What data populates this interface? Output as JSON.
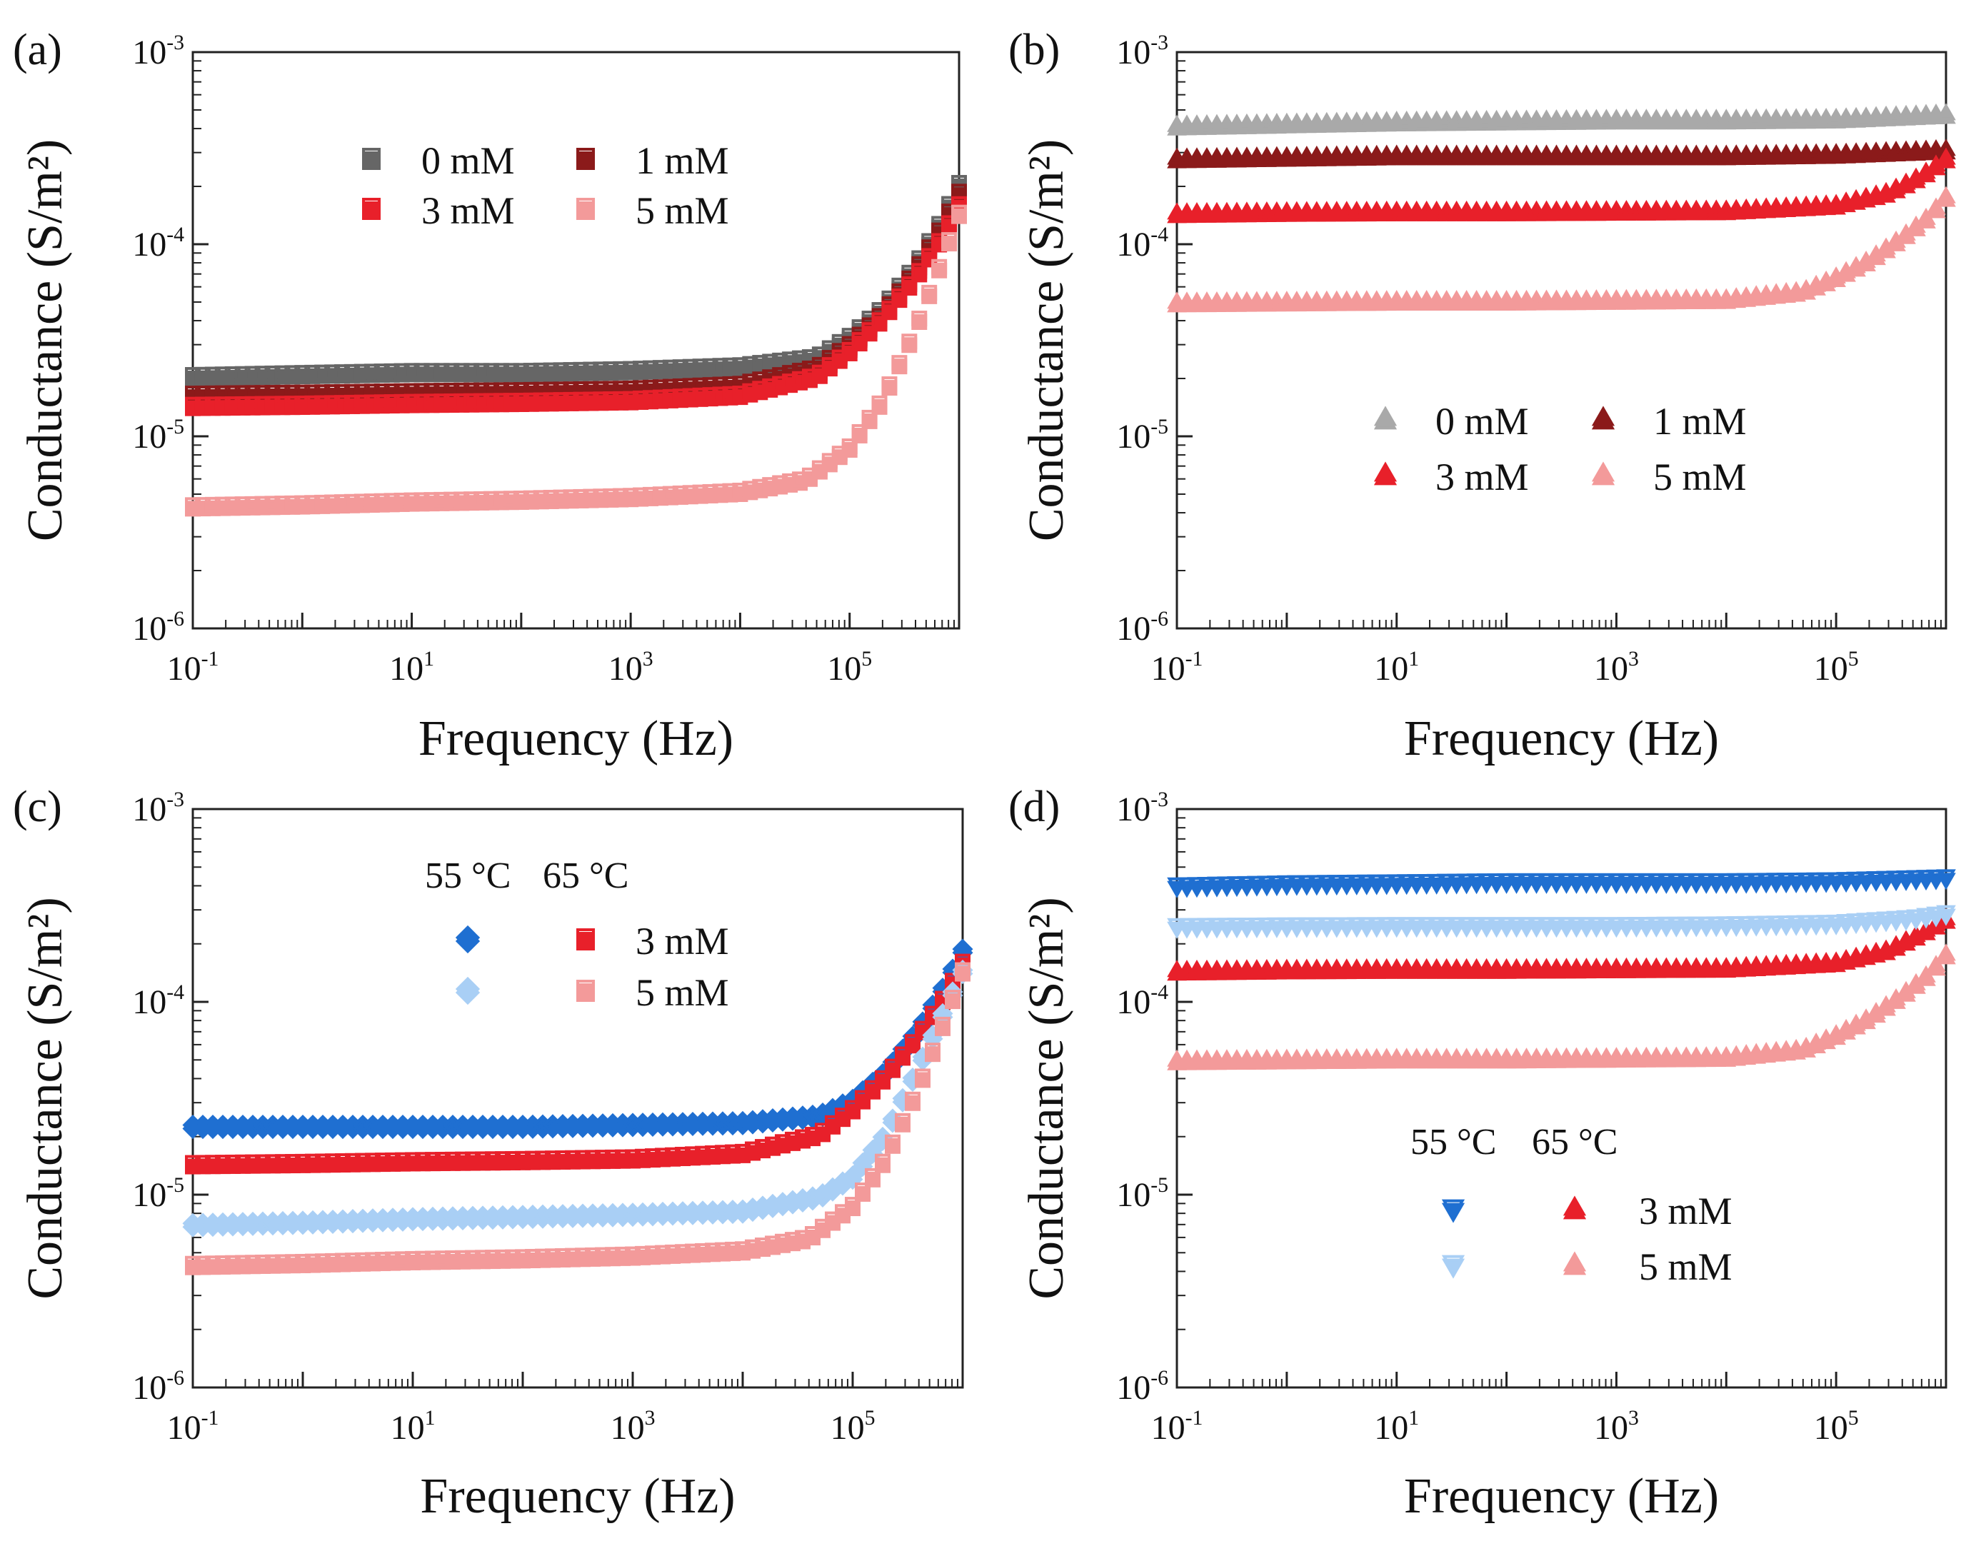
{
  "figure": {
    "panels": [
      "a",
      "b",
      "c",
      "d"
    ]
  },
  "chart_data": [
    {
      "id": "a",
      "panel_label": "(a)",
      "type": "scatter",
      "title": "",
      "xlabel": "Frequency (Hz)",
      "ylabel": "Conductance (S/m²)",
      "xscale": "log",
      "yscale": "log",
      "xlim": [
        0.1,
        1000000
      ],
      "ylim": [
        1e-06,
        0.001
      ],
      "xticks": [
        {
          "base": "10",
          "exp": "-1",
          "v": 0.1
        },
        {
          "base": "10",
          "exp": "1",
          "v": 10
        },
        {
          "base": "10",
          "exp": "3",
          "v": 1000
        },
        {
          "base": "10",
          "exp": "5",
          "v": 100000
        }
      ],
      "yticks": [
        {
          "base": "10",
          "exp": "-6",
          "v": 1e-06
        },
        {
          "base": "10",
          "exp": "-5",
          "v": 1e-05
        },
        {
          "base": "10",
          "exp": "-4",
          "v": 0.0001
        },
        {
          "base": "10",
          "exp": "-3",
          "v": 0.001
        }
      ],
      "legend": {
        "placement": "top-center",
        "columns": 2,
        "header": []
      },
      "series": [
        {
          "name": "0 mM",
          "color": "#666666",
          "marker": "square",
          "points": [
            [
              0.1,
              2e-05
            ],
            [
              1,
              2.05e-05
            ],
            [
              10,
              2.1e-05
            ],
            [
              100,
              2.1e-05
            ],
            [
              1000,
              2.15e-05
            ],
            [
              10000,
              2.25e-05
            ],
            [
              50000,
              2.5e-05
            ],
            [
              100000,
              3.2e-05
            ],
            [
              200000,
              4.5e-05
            ],
            [
              400000,
              7.5e-05
            ],
            [
              700000,
              0.00013
            ],
            [
              1000000,
              0.0002
            ]
          ]
        },
        {
          "name": "1 mM",
          "color": "#8b1a1a",
          "marker": "square",
          "points": [
            [
              0.1,
              1.6e-05
            ],
            [
              1,
              1.62e-05
            ],
            [
              10,
              1.65e-05
            ],
            [
              100,
              1.67e-05
            ],
            [
              1000,
              1.7e-05
            ],
            [
              10000,
              1.8e-05
            ],
            [
              50000,
              2.2e-05
            ],
            [
              100000,
              2.9e-05
            ],
            [
              200000,
              4.2e-05
            ],
            [
              400000,
              7e-05
            ],
            [
              700000,
              0.00012
            ],
            [
              1000000,
              0.00018
            ]
          ]
        },
        {
          "name": "3 mM",
          "color": "#e8202a",
          "marker": "square",
          "points": [
            [
              0.1,
              1.4e-05
            ],
            [
              1,
              1.42e-05
            ],
            [
              10,
              1.45e-05
            ],
            [
              100,
              1.47e-05
            ],
            [
              1000,
              1.5e-05
            ],
            [
              10000,
              1.6e-05
            ],
            [
              50000,
              2e-05
            ],
            [
              100000,
              2.7e-05
            ],
            [
              200000,
              4e-05
            ],
            [
              400000,
              6.5e-05
            ],
            [
              700000,
              0.000105
            ],
            [
              1000000,
              0.000155
            ]
          ]
        },
        {
          "name": "5 mM",
          "color": "#f39a9a",
          "marker": "square",
          "points": [
            [
              0.1,
              4.2e-06
            ],
            [
              1,
              4.3e-06
            ],
            [
              10,
              4.45e-06
            ],
            [
              100,
              4.55e-06
            ],
            [
              1000,
              4.7e-06
            ],
            [
              10000,
              5e-06
            ],
            [
              40000,
              5.8e-06
            ],
            [
              100000,
              8.5e-06
            ],
            [
              200000,
              1.5e-05
            ],
            [
              400000,
              3.5e-05
            ],
            [
              700000,
              8e-05
            ],
            [
              1000000,
              0.00014
            ]
          ]
        }
      ]
    },
    {
      "id": "b",
      "panel_label": "(b)",
      "type": "scatter",
      "title": "",
      "xlabel": "Frequency (Hz)",
      "ylabel": "Conductance (S/m²)",
      "xscale": "log",
      "yscale": "log",
      "xlim": [
        0.1,
        1000000
      ],
      "ylim": [
        1e-06,
        0.001
      ],
      "xticks": [
        {
          "base": "10",
          "exp": "-1",
          "v": 0.1
        },
        {
          "base": "10",
          "exp": "1",
          "v": 10
        },
        {
          "base": "10",
          "exp": "3",
          "v": 1000
        },
        {
          "base": "10",
          "exp": "5",
          "v": 100000
        }
      ],
      "yticks": [
        {
          "base": "10",
          "exp": "-6",
          "v": 1e-06
        },
        {
          "base": "10",
          "exp": "-5",
          "v": 1e-05
        },
        {
          "base": "10",
          "exp": "-4",
          "v": 0.0001
        },
        {
          "base": "10",
          "exp": "-3",
          "v": 0.001
        }
      ],
      "legend": {
        "placement": "center-right",
        "columns": 2,
        "header": []
      },
      "series": [
        {
          "name": "0 mM",
          "color": "#a9a9a9",
          "marker": "triangle-up",
          "points": [
            [
              0.1,
              0.0004
            ],
            [
              1,
              0.00041
            ],
            [
              10,
              0.00042
            ],
            [
              100,
              0.000425
            ],
            [
              1000,
              0.00043
            ],
            [
              10000,
              0.00043
            ],
            [
              100000,
              0.000435
            ],
            [
              1000000,
              0.00046
            ]
          ]
        },
        {
          "name": "1 mM",
          "color": "#8b1a1a",
          "marker": "triangle-up",
          "points": [
            [
              0.1,
              0.00027
            ],
            [
              1,
              0.000275
            ],
            [
              10,
              0.00028
            ],
            [
              100,
              0.00028
            ],
            [
              1000,
              0.00028
            ],
            [
              10000,
              0.00028
            ],
            [
              100000,
              0.000285
            ],
            [
              1000000,
              0.0003
            ]
          ]
        },
        {
          "name": "3 mM",
          "color": "#e8202a",
          "marker": "triangle-up",
          "points": [
            [
              0.1,
              0.00014
            ],
            [
              1,
              0.000142
            ],
            [
              10,
              0.000143
            ],
            [
              100,
              0.000143
            ],
            [
              1000,
              0.000144
            ],
            [
              10000,
              0.000145
            ],
            [
              100000,
              0.000155
            ],
            [
              300000,
              0.00018
            ],
            [
              600000,
              0.00022
            ],
            [
              1000000,
              0.00027
            ]
          ]
        },
        {
          "name": "5 mM",
          "color": "#f39a9a",
          "marker": "triangle-up",
          "points": [
            [
              0.1,
              4.8e-05
            ],
            [
              1,
              4.85e-05
            ],
            [
              10,
              4.9e-05
            ],
            [
              100,
              4.9e-05
            ],
            [
              1000,
              4.95e-05
            ],
            [
              10000,
              5e-05
            ],
            [
              50000,
              5.5e-05
            ],
            [
              100000,
              6.5e-05
            ],
            [
              200000,
              8e-05
            ],
            [
              400000,
              0.000105
            ],
            [
              700000,
              0.000135
            ],
            [
              1000000,
              0.00017
            ]
          ]
        }
      ]
    },
    {
      "id": "c",
      "panel_label": "(c)",
      "type": "scatter",
      "title": "",
      "xlabel": "Frequency (Hz)",
      "ylabel": "Conductance (S/m²)",
      "xscale": "log",
      "yscale": "log",
      "xlim": [
        0.1,
        1000000
      ],
      "ylim": [
        1e-06,
        0.001
      ],
      "xticks": [
        {
          "base": "10",
          "exp": "-1",
          "v": 0.1
        },
        {
          "base": "10",
          "exp": "1",
          "v": 10
        },
        {
          "base": "10",
          "exp": "3",
          "v": 1000
        },
        {
          "base": "10",
          "exp": "5",
          "v": 100000
        }
      ],
      "yticks": [
        {
          "base": "10",
          "exp": "-6",
          "v": 1e-06
        },
        {
          "base": "10",
          "exp": "-5",
          "v": 1e-05
        },
        {
          "base": "10",
          "exp": "-4",
          "v": 0.0001
        },
        {
          "base": "10",
          "exp": "-3",
          "v": 0.001
        }
      ],
      "legend": {
        "placement": "top-center",
        "columns": 2,
        "header": [
          "55 °C",
          "65 °C"
        ],
        "row_labels": [
          "3 mM",
          "5 mM"
        ]
      },
      "series": [
        {
          "name": "55 °C 3 mM",
          "color": "#1f6fd1",
          "marker": "diamond",
          "points": [
            [
              0.1,
              2.2e-05
            ],
            [
              1,
              2.2e-05
            ],
            [
              10,
              2.2e-05
            ],
            [
              100,
              2.2e-05
            ],
            [
              1000,
              2.25e-05
            ],
            [
              10000,
              2.3e-05
            ],
            [
              50000,
              2.5e-05
            ],
            [
              100000,
              3e-05
            ],
            [
              200000,
              4.2e-05
            ],
            [
              400000,
              7e-05
            ],
            [
              700000,
              0.00012
            ],
            [
              1000000,
              0.00018
            ]
          ]
        },
        {
          "name": "65 °C 3 mM",
          "color": "#e8202a",
          "marker": "square",
          "points": [
            [
              0.1,
              1.4e-05
            ],
            [
              1,
              1.42e-05
            ],
            [
              10,
              1.45e-05
            ],
            [
              100,
              1.47e-05
            ],
            [
              1000,
              1.5e-05
            ],
            [
              10000,
              1.6e-05
            ],
            [
              50000,
              2e-05
            ],
            [
              100000,
              2.7e-05
            ],
            [
              200000,
              4e-05
            ],
            [
              400000,
              6.5e-05
            ],
            [
              700000,
              0.000105
            ],
            [
              1000000,
              0.000155
            ]
          ]
        },
        {
          "name": "55 °C 5 mM",
          "color": "#a9cff5",
          "marker": "diamond",
          "points": [
            [
              0.1,
              6.8e-06
            ],
            [
              1,
              7e-06
            ],
            [
              10,
              7.3e-06
            ],
            [
              100,
              7.5e-06
            ],
            [
              1000,
              7.7e-06
            ],
            [
              10000,
              8e-06
            ],
            [
              50000,
              9.5e-06
            ],
            [
              100000,
              1.2e-05
            ],
            [
              200000,
              2e-05
            ],
            [
              400000,
              4.5e-05
            ],
            [
              700000,
              9e-05
            ],
            [
              1000000,
              0.00014
            ]
          ]
        },
        {
          "name": "65 °C 5 mM",
          "color": "#f39a9a",
          "marker": "square",
          "points": [
            [
              0.1,
              4.2e-06
            ],
            [
              1,
              4.3e-06
            ],
            [
              10,
              4.45e-06
            ],
            [
              100,
              4.55e-06
            ],
            [
              1000,
              4.7e-06
            ],
            [
              10000,
              5e-06
            ],
            [
              40000,
              5.8e-06
            ],
            [
              100000,
              8.5e-06
            ],
            [
              200000,
              1.5e-05
            ],
            [
              400000,
              3.5e-05
            ],
            [
              700000,
              8e-05
            ],
            [
              1000000,
              0.00014
            ]
          ]
        }
      ]
    },
    {
      "id": "d",
      "panel_label": "(d)",
      "type": "scatter",
      "title": "",
      "xlabel": "Frequency (Hz)",
      "ylabel": "Conductance (S/m²)",
      "xscale": "log",
      "yscale": "log",
      "xlim": [
        0.1,
        1000000
      ],
      "ylim": [
        1e-06,
        0.001
      ],
      "xticks": [
        {
          "base": "10",
          "exp": "-1",
          "v": 0.1
        },
        {
          "base": "10",
          "exp": "1",
          "v": 10
        },
        {
          "base": "10",
          "exp": "3",
          "v": 1000
        },
        {
          "base": "10",
          "exp": "5",
          "v": 100000
        }
      ],
      "yticks": [
        {
          "base": "10",
          "exp": "-6",
          "v": 1e-06
        },
        {
          "base": "10",
          "exp": "-5",
          "v": 1e-05
        },
        {
          "base": "10",
          "exp": "-4",
          "v": 0.0001
        },
        {
          "base": "10",
          "exp": "-3",
          "v": 0.001
        }
      ],
      "legend": {
        "placement": "bottom-center",
        "columns": 2,
        "header": [
          "55 °C",
          "65 °C"
        ],
        "row_labels": [
          "3 mM",
          "5 mM"
        ]
      },
      "series": [
        {
          "name": "55 °C 3 mM",
          "color": "#1f6fd1",
          "marker": "triangle-down",
          "points": [
            [
              0.1,
              0.00039
            ],
            [
              1,
              0.0004
            ],
            [
              10,
              0.000405
            ],
            [
              100,
              0.00041
            ],
            [
              1000,
              0.00041
            ],
            [
              10000,
              0.00041
            ],
            [
              100000,
              0.000415
            ],
            [
              1000000,
              0.00043
            ]
          ]
        },
        {
          "name": "65 °C 3 mM",
          "color": "#e8202a",
          "marker": "triangle-up",
          "points": [
            [
              0.1,
              0.00014
            ],
            [
              1,
              0.000142
            ],
            [
              10,
              0.000143
            ],
            [
              100,
              0.000143
            ],
            [
              1000,
              0.000144
            ],
            [
              10000,
              0.000145
            ],
            [
              100000,
              0.000155
            ],
            [
              300000,
              0.00018
            ],
            [
              600000,
              0.00022
            ],
            [
              1000000,
              0.00026
            ]
          ]
        },
        {
          "name": "55 °C 5 mM",
          "color": "#a9cff5",
          "marker": "triangle-down",
          "points": [
            [
              0.1,
              0.00024
            ],
            [
              1,
              0.000242
            ],
            [
              10,
              0.000243
            ],
            [
              100,
              0.000243
            ],
            [
              1000,
              0.000243
            ],
            [
              10000,
              0.000245
            ],
            [
              100000,
              0.00025
            ],
            [
              500000,
              0.000265
            ],
            [
              1000000,
              0.00028
            ]
          ]
        },
        {
          "name": "65 °C 5 mM",
          "color": "#f39a9a",
          "marker": "triangle-up",
          "points": [
            [
              0.1,
              4.8e-05
            ],
            [
              1,
              4.85e-05
            ],
            [
              10,
              4.9e-05
            ],
            [
              100,
              4.9e-05
            ],
            [
              1000,
              4.95e-05
            ],
            [
              10000,
              5e-05
            ],
            [
              50000,
              5.5e-05
            ],
            [
              100000,
              6.5e-05
            ],
            [
              200000,
              8e-05
            ],
            [
              400000,
              0.000105
            ],
            [
              700000,
              0.000135
            ],
            [
              1000000,
              0.00017
            ]
          ]
        }
      ]
    }
  ]
}
